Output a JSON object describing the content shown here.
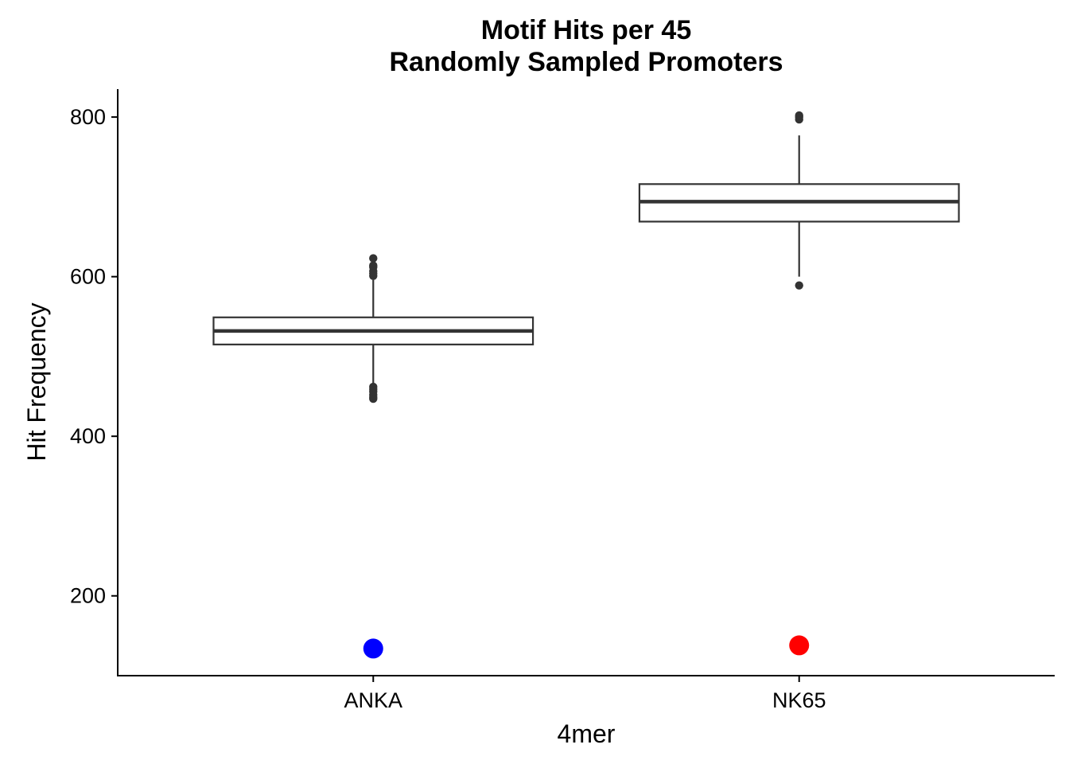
{
  "chart_data": {
    "type": "box",
    "title_lines": [
      "Motif Hits per 45",
      "Randomly Sampled Promoters"
    ],
    "xlabel": "4mer",
    "ylabel": "Hit Frequency",
    "categories": [
      "ANKA",
      "NK65"
    ],
    "ylim": [
      100,
      835
    ],
    "yticks": [
      200,
      400,
      600,
      800
    ],
    "y_tick_labels": [
      "200",
      "400",
      "600",
      "800"
    ],
    "grid": false,
    "legend": "none",
    "boxes": [
      {
        "category": "ANKA",
        "q1": 515,
        "median": 532,
        "q3": 549,
        "whisker_low": 466,
        "whisker_high": 596,
        "outliers": [
          447,
          449,
          452,
          456,
          459,
          462,
          601,
          604,
          607,
          612,
          614,
          623
        ]
      },
      {
        "category": "NK65",
        "q1": 669,
        "median": 694,
        "q3": 716,
        "whisker_low": 600,
        "whisker_high": 777,
        "outliers": [
          589,
          797,
          800,
          802
        ]
      }
    ],
    "observed": [
      {
        "category": "ANKA",
        "value": 134,
        "color": "#0000ff"
      },
      {
        "category": "NK65",
        "value": 138,
        "color": "#ff0000"
      }
    ],
    "box_color": "#333333"
  }
}
